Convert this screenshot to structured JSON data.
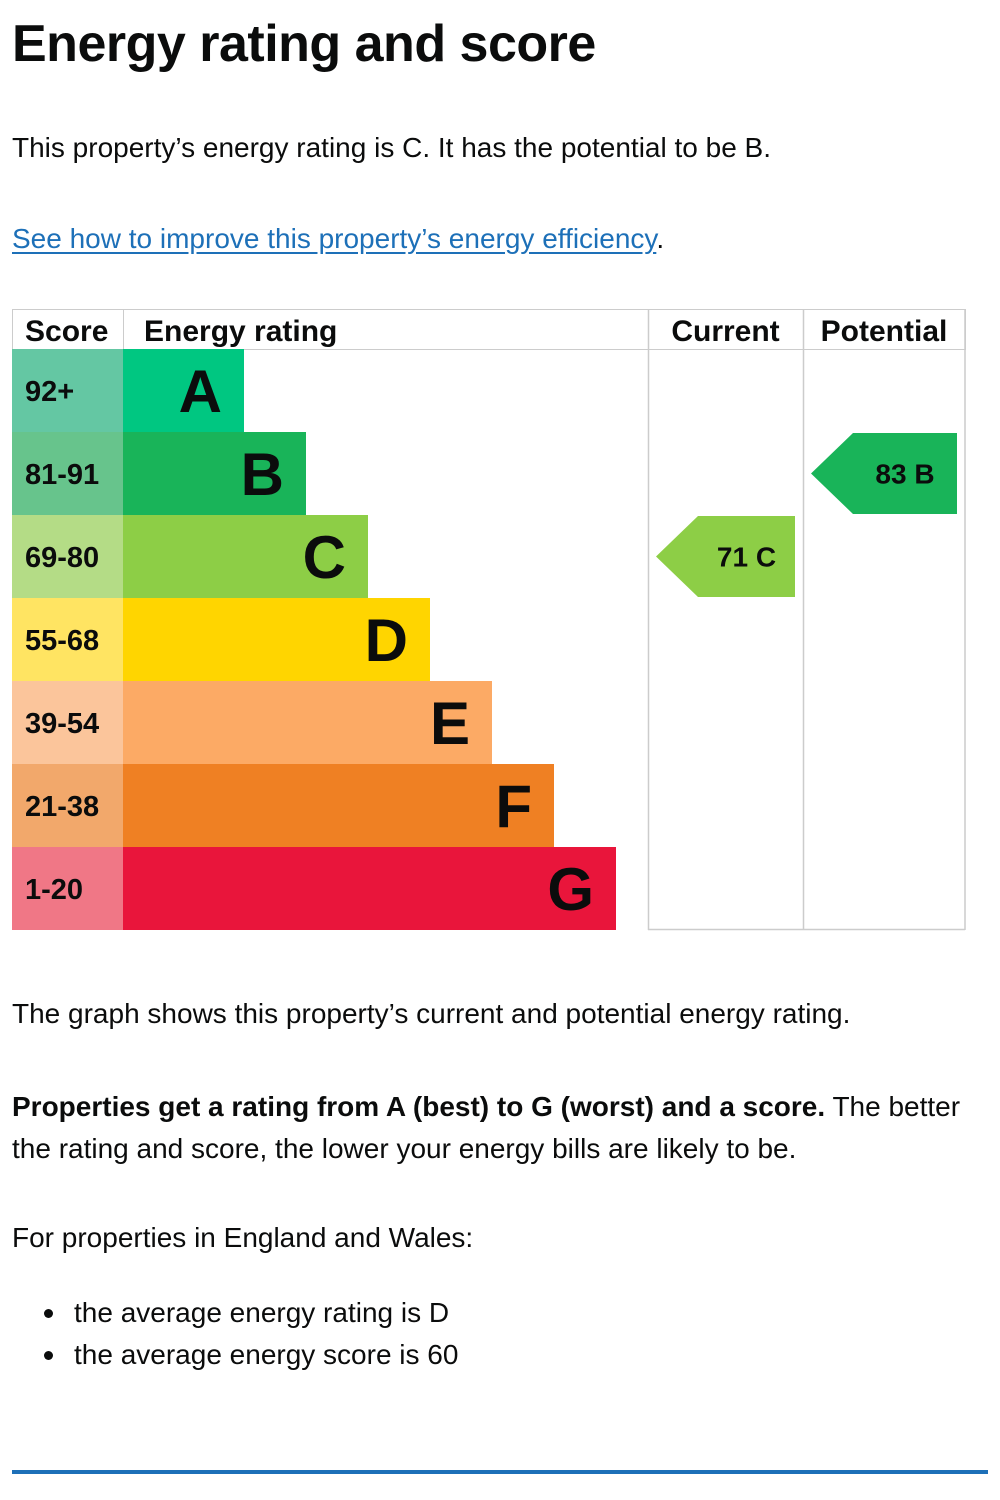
{
  "page": {
    "title": "Energy rating and score",
    "intro": "This property’s energy rating is C. It has the potential to be B.",
    "improve_link": "See how to improve this property’s energy efficiency",
    "improve_suffix": ".",
    "graph_note": "The graph shows this property’s current and potential energy rating.",
    "explain_bold": "Properties get a rating from A (best) to G (worst) and a score.",
    "explain_rest": " The better the rating and score, the lower your energy bills are likely to be.",
    "region_intro": "For properties in England and Wales:",
    "averages": [
      "the average energy rating is D",
      "the average energy score is 60"
    ]
  },
  "chart_data": {
    "type": "table",
    "headers": {
      "score": "Score",
      "rating": "Energy rating",
      "current": "Current",
      "potential": "Potential"
    },
    "bands": [
      {
        "range": "92+",
        "letter": "A",
        "color": "#00c781",
        "light": "#64c7a3"
      },
      {
        "range": "81-91",
        "letter": "B",
        "color": "#19b459",
        "light": "#67c48c"
      },
      {
        "range": "69-80",
        "letter": "C",
        "color": "#8dce46",
        "light": "#b4dc86"
      },
      {
        "range": "55-68",
        "letter": "D",
        "color": "#ffd500",
        "light": "#ffe462"
      },
      {
        "range": "39-54",
        "letter": "E",
        "color": "#fcaa65",
        "light": "#fbc59b"
      },
      {
        "range": "21-38",
        "letter": "F",
        "color": "#ef8023",
        "light": "#f2a86b"
      },
      {
        "range": "1-20",
        "letter": "G",
        "color": "#e9153b",
        "light": "#f07786"
      }
    ],
    "current": {
      "score": 71,
      "letter": "C",
      "label": "71 C",
      "color": "#8dce46"
    },
    "potential": {
      "score": 83,
      "letter": "B",
      "label": "83 B",
      "color": "#19b459"
    }
  }
}
